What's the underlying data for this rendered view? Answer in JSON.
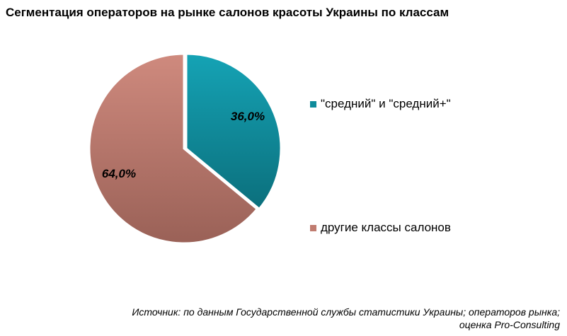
{
  "title": "Сегментация операторов на рынке салонов красоты Украины по классам",
  "chart_data": {
    "type": "pie",
    "title": "Сегментация операторов на рынке салонов красоты Украины по классам",
    "slices": [
      {
        "label": "\"средний\" и \"средний+\"",
        "value": 36.0,
        "value_label": "36,0%",
        "color": "#0f8b9b"
      },
      {
        "label": "другие классы салонов",
        "value": 64.0,
        "value_label": "64,0%",
        "color": "#c07c70"
      }
    ],
    "legend_position": "right"
  },
  "source": {
    "line1": "Источник: по данным Государственной службы статистики Украины; операторов рынка;",
    "line2": "оценка Pro-Consulting"
  }
}
